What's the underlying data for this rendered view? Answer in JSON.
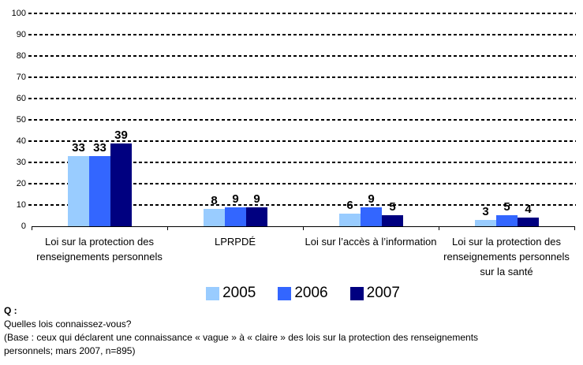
{
  "chart_data": {
    "type": "bar",
    "categories": [
      "Loi sur la protection des renseignements personnels",
      "LPRPDÉ",
      "Loi sur l’accès à l’information",
      "Loi sur la protection des renseignements personnels sur la santé"
    ],
    "series": [
      {
        "name": "2005",
        "color": "#99CCFF",
        "values": [
          33,
          8,
          6,
          3
        ]
      },
      {
        "name": "2006",
        "color": "#3366FF",
        "values": [
          33,
          9,
          9,
          5
        ]
      },
      {
        "name": "2007",
        "color": "#000080",
        "values": [
          39,
          9,
          5,
          4
        ]
      }
    ],
    "title": "",
    "xlabel": "",
    "ylabel": "",
    "ylim": [
      0,
      100
    ],
    "ytick_step": 10,
    "grid": "horizontal-dotted",
    "legend_position": "bottom",
    "value_labels": true
  },
  "footnote": {
    "q_label": "Q :",
    "question": "Quelles lois connaissez-vous?",
    "base_line1": "(Base : ceux qui déclarent une connaissance « vague » à « claire » des lois sur la protection des renseignements",
    "base_line2": "personnels; mars 2007, n=895)"
  }
}
